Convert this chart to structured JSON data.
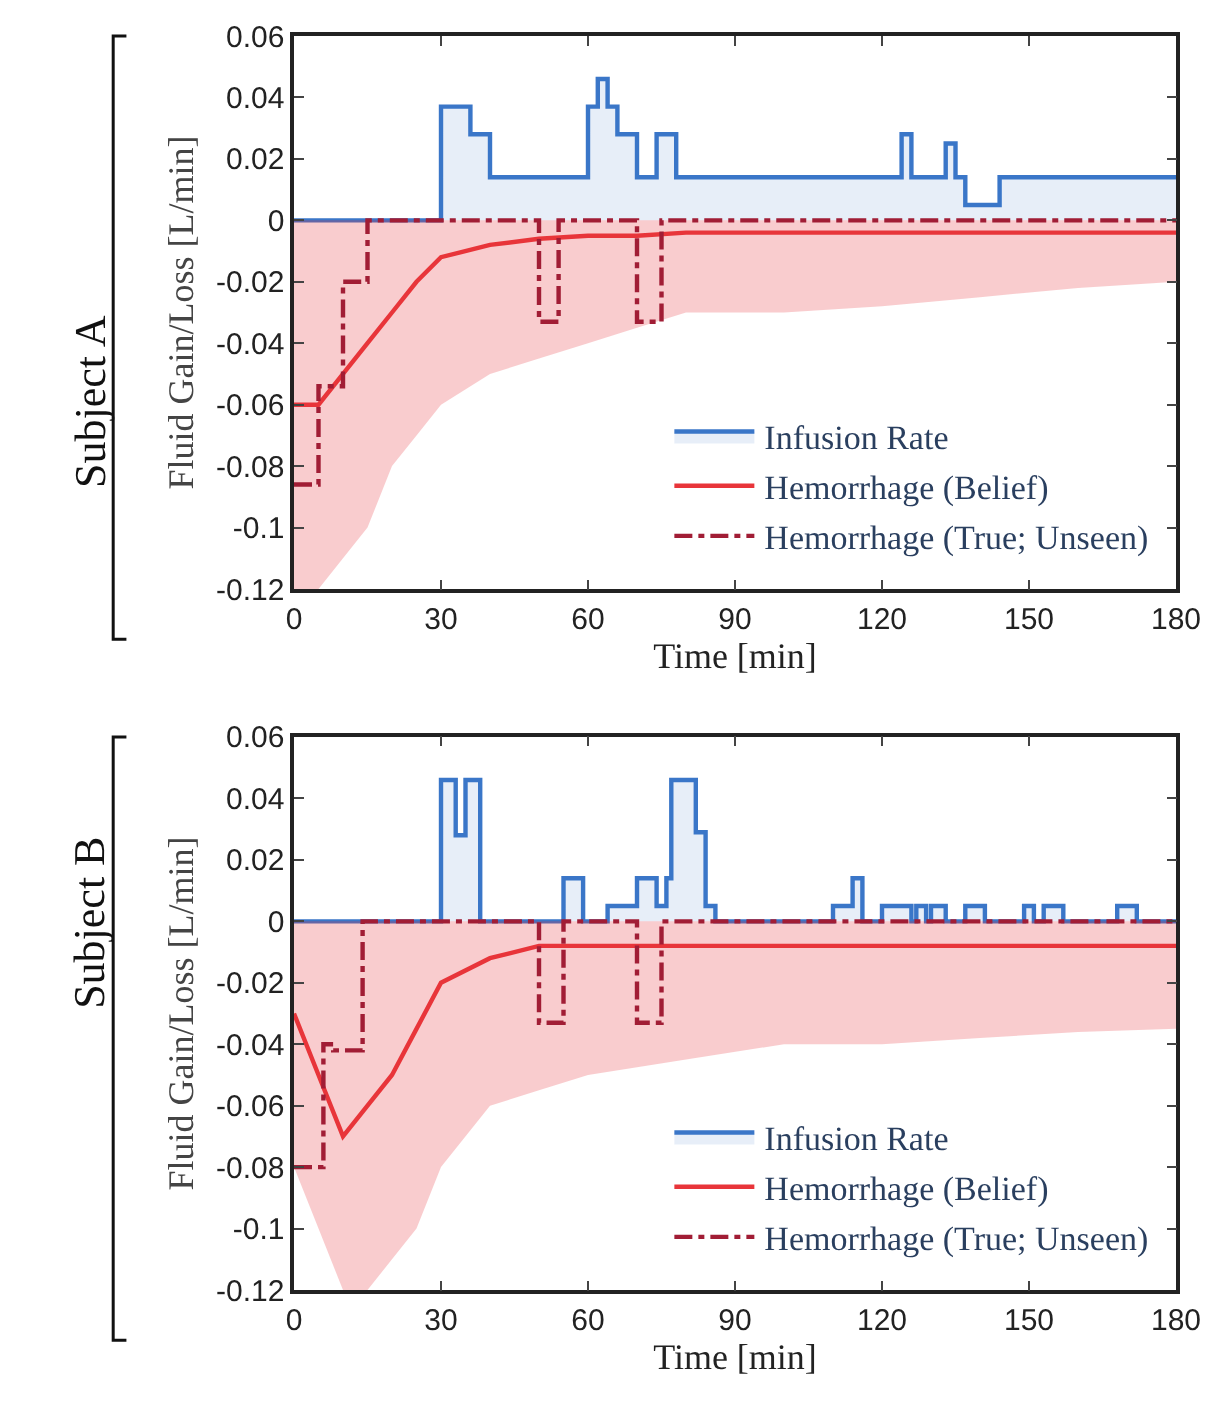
{
  "chart_data": [
    {
      "type": "step",
      "xlabel": "Time [min]",
      "ylabel": "Fluid Gain/Loss [L/min]",
      "annotations": [
        "Subject A"
      ],
      "xlim": [
        0,
        180
      ],
      "xticks": [
        0,
        30,
        60,
        90,
        120,
        150,
        180
      ],
      "ylim": [
        -0.12,
        0.06
      ],
      "yticks": [
        -0.12,
        -0.1,
        -0.08,
        -0.06,
        -0.04,
        -0.02,
        0,
        0.02,
        0.04,
        0.06
      ],
      "legend": "bottom right",
      "series": [
        {
          "name": "Infusion Rate",
          "type": "area",
          "color": "#3a76c8",
          "x": [
            0,
            30,
            36,
            40,
            60,
            62,
            64,
            66,
            70,
            74,
            78,
            124,
            126,
            133,
            135,
            137,
            144,
            180
          ],
          "values": [
            0,
            0.037,
            0.028,
            0.014,
            0.037,
            0.046,
            0.037,
            0.028,
            0.014,
            0.028,
            0.014,
            0.028,
            0.014,
            0.025,
            0.014,
            0.005,
            0.014,
            0.014
          ]
        },
        {
          "name": "Hemorrhage (Belief)",
          "type": "line",
          "color": "#e8353a",
          "x": [
            0,
            5,
            10,
            15,
            20,
            25,
            30,
            40,
            50,
            60,
            70,
            80,
            100,
            120,
            140,
            160,
            180
          ],
          "values": [
            -0.06,
            -0.06,
            -0.05,
            -0.04,
            -0.03,
            -0.02,
            -0.012,
            -0.008,
            -0.006,
            -0.005,
            -0.005,
            -0.004,
            -0.004,
            -0.004,
            -0.004,
            -0.004,
            -0.004
          ],
          "lower": [
            -0.12,
            -0.12,
            -0.11,
            -0.1,
            -0.08,
            -0.07,
            -0.06,
            -0.05,
            -0.045,
            -0.04,
            -0.035,
            -0.03,
            -0.03,
            -0.028,
            -0.025,
            -0.022,
            -0.02
          ],
          "upper": [
            0,
            0,
            0,
            0,
            0,
            0,
            0,
            0,
            0,
            0,
            0,
            0,
            0,
            0,
            0,
            0,
            0
          ]
        },
        {
          "name": "Hemorrhage (True; Unseen)",
          "color": "#a11d35",
          "line_style": "dashed",
          "x": [
            0,
            5,
            10,
            15,
            50,
            54,
            70,
            75,
            180
          ],
          "values": [
            -0.086,
            -0.054,
            -0.02,
            0,
            -0.033,
            0,
            -0.033,
            0,
            0
          ]
        }
      ]
    },
    {
      "type": "step",
      "xlabel": "Time [min]",
      "ylabel": "Fluid Gain/Loss [L/min]",
      "annotations": [
        "Subject B"
      ],
      "xlim": [
        0,
        180
      ],
      "xticks": [
        0,
        30,
        60,
        90,
        120,
        150,
        180
      ],
      "ylim": [
        -0.12,
        0.06
      ],
      "yticks": [
        -0.12,
        -0.1,
        -0.08,
        -0.06,
        -0.04,
        -0.02,
        0,
        0.02,
        0.04,
        0.06
      ],
      "legend": "bottom right",
      "series": [
        {
          "name": "Infusion Rate",
          "type": "area",
          "color": "#3a76c8",
          "x": [
            0,
            30,
            33,
            35,
            38,
            55,
            59,
            64,
            70,
            74,
            76,
            77,
            82,
            84,
            86,
            110,
            114,
            116,
            120,
            126,
            127,
            129,
            130,
            133,
            137,
            141,
            149,
            151,
            153,
            157,
            168,
            172,
            180
          ],
          "values": [
            0,
            0.046,
            0.028,
            0.046,
            0,
            0.014,
            0,
            0.005,
            0.014,
            0.005,
            0.014,
            0.046,
            0.029,
            0.005,
            0,
            0.005,
            0.014,
            0,
            0.005,
            0,
            0.005,
            0,
            0.005,
            0,
            0.005,
            0,
            0.005,
            0,
            0.005,
            0,
            0.005,
            0,
            0
          ]
        },
        {
          "name": "Hemorrhage (Belief)",
          "type": "line",
          "color": "#e8353a",
          "x": [
            0,
            5,
            10,
            15,
            20,
            25,
            30,
            40,
            50,
            60,
            80,
            100,
            120,
            140,
            160,
            180
          ],
          "values": [
            -0.03,
            -0.05,
            -0.07,
            -0.06,
            -0.05,
            -0.035,
            -0.02,
            -0.012,
            -0.008,
            -0.008,
            -0.008,
            -0.008,
            -0.008,
            -0.008,
            -0.008,
            -0.008
          ],
          "lower": [
            -0.08,
            -0.1,
            -0.12,
            -0.12,
            -0.11,
            -0.1,
            -0.08,
            -0.06,
            -0.055,
            -0.05,
            -0.045,
            -0.04,
            -0.04,
            -0.038,
            -0.036,
            -0.035
          ],
          "upper": [
            0,
            0,
            0,
            0,
            0,
            0,
            0,
            0,
            0,
            0,
            0,
            0,
            0,
            0,
            0,
            0
          ]
        },
        {
          "name": "Hemorrhage (True; Unseen)",
          "color": "#a11d35",
          "line_style": "dashed",
          "x": [
            0,
            6,
            8,
            14,
            50,
            55,
            70,
            75,
            180
          ],
          "values": [
            -0.08,
            -0.04,
            -0.042,
            0,
            -0.033,
            0,
            -0.033,
            0,
            0
          ]
        }
      ]
    }
  ]
}
